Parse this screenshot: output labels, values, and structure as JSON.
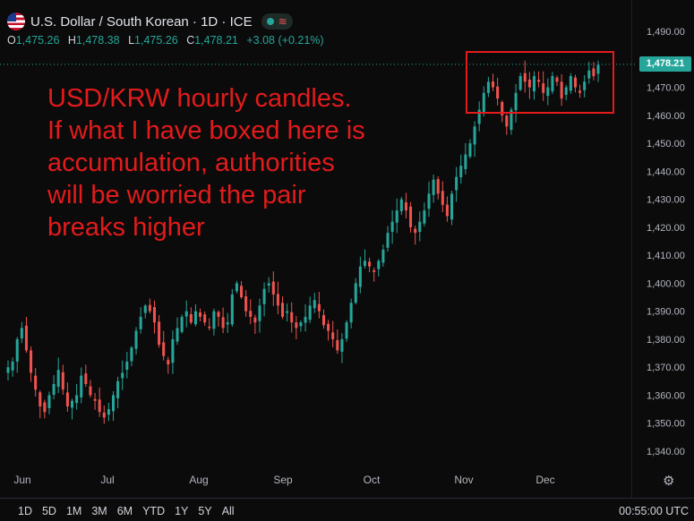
{
  "header": {
    "title": "U.S. Dollar / South Korean · 1D · ICE",
    "open_label": "O",
    "open_value": "1,475.26",
    "high_label": "H",
    "high_value": "1,478.38",
    "low_label": "L",
    "low_value": "1,475.26",
    "close_label": "C",
    "close_value": "1,478.21",
    "change": "+3.08 (+0.21%)"
  },
  "price_tag": "1,478.21",
  "annotation": {
    "lines": [
      "USD/KRW hourly candles.",
      "If what I have boxed here is",
      "accumulation, authorities",
      "will be worried the pair",
      "breaks higher"
    ]
  },
  "colors": {
    "up": "#26a69a",
    "down": "#ef5350",
    "annotation": "#e31b1b",
    "background": "#0b0b0b"
  },
  "time_ranges": [
    "1D",
    "5D",
    "1M",
    "3M",
    "6M",
    "YTD",
    "1Y",
    "5Y",
    "All"
  ],
  "clock": "00:55:00 UTC",
  "icons": {
    "settings": "gear-icon",
    "flag": "us-flag-icon"
  },
  "chart_data": {
    "type": "candlestick",
    "y_ticks": [
      "1,490.00",
      "1,480.00",
      "1,470.00",
      "1,460.00",
      "1,450.00",
      "1,440.00",
      "1,430.00",
      "1,420.00",
      "1,410.00",
      "1,400.00",
      "1,390.00",
      "1,380.00",
      "1,370.00",
      "1,360.00",
      "1,350.00",
      "1,340.00"
    ],
    "ylim": [
      1337,
      1494
    ],
    "x_ticks": [
      "Jun",
      "Jul",
      "Aug",
      "Sep",
      "Oct",
      "Nov",
      "Dec"
    ],
    "close_series": [
      1370,
      1372,
      1380,
      1384,
      1376,
      1368,
      1362,
      1356,
      1354,
      1360,
      1364,
      1369,
      1362,
      1356,
      1358,
      1360,
      1367,
      1364,
      1360,
      1358,
      1354,
      1352,
      1355,
      1360,
      1365,
      1368,
      1372,
      1377,
      1383,
      1388,
      1392,
      1390,
      1386,
      1378,
      1374,
      1371,
      1380,
      1384,
      1388,
      1390,
      1386,
      1390,
      1388,
      1386,
      1384,
      1390,
      1388,
      1384,
      1386,
      1396,
      1400,
      1395,
      1390,
      1388,
      1386,
      1392,
      1398,
      1400,
      1396,
      1392,
      1388,
      1390,
      1386,
      1384,
      1386,
      1388,
      1392,
      1394,
      1390,
      1385,
      1383,
      1380,
      1376,
      1380,
      1386,
      1393,
      1400,
      1406,
      1408,
      1406,
      1404,
      1408,
      1412,
      1418,
      1422,
      1426,
      1430,
      1426,
      1420,
      1418,
      1422,
      1426,
      1432,
      1437,
      1432,
      1428,
      1424,
      1432,
      1438,
      1442,
      1446,
      1450,
      1456,
      1462,
      1468,
      1472,
      1470,
      1466,
      1460,
      1456,
      1462,
      1468,
      1474,
      1472,
      1470,
      1474,
      1472,
      1468,
      1470,
      1474,
      1472,
      1466,
      1470,
      1474,
      1470,
      1468,
      1472,
      1476,
      1474,
      1478
    ],
    "box": {
      "from_index": 104,
      "to_index": 129,
      "price_low": 1460,
      "price_high": 1482
    }
  }
}
